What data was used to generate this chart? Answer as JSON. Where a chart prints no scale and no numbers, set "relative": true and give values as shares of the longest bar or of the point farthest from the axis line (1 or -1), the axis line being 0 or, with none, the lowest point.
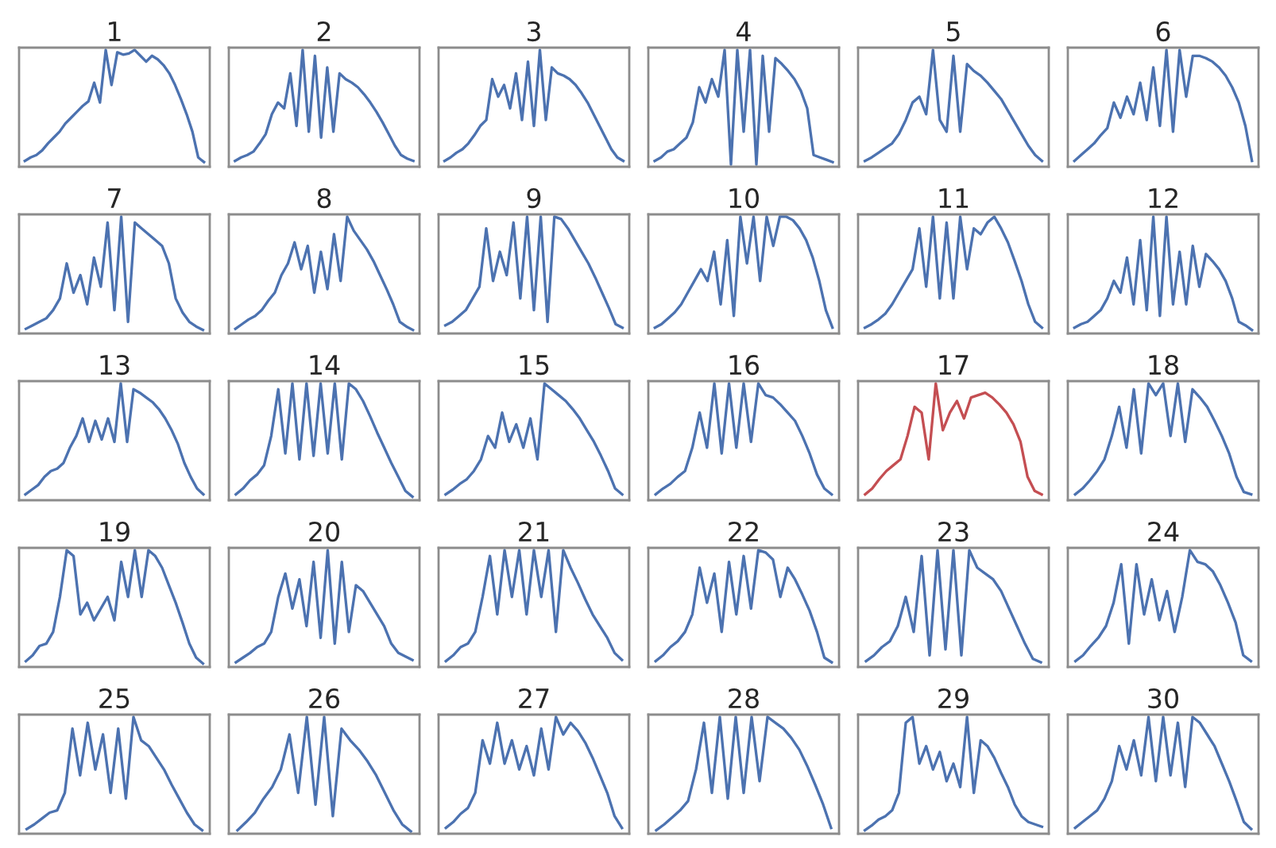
{
  "chart_data": [
    {
      "type": "line",
      "relative": true,
      "title": "1",
      "color": "#4c72b0",
      "values": [
        0.05,
        0.08,
        0.1,
        0.14,
        0.2,
        0.25,
        0.3,
        0.37,
        0.42,
        0.47,
        0.52,
        0.56,
        0.72,
        0.55,
        1.0,
        0.7,
        0.98,
        0.96,
        0.97,
        1.0,
        0.95,
        0.9,
        0.95,
        0.92,
        0.87,
        0.8,
        0.7,
        0.58,
        0.45,
        0.3,
        0.08,
        0.04
      ]
    },
    {
      "type": "line",
      "relative": true,
      "title": "2",
      "color": "#4c72b0",
      "values": [
        0.05,
        0.08,
        0.1,
        0.13,
        0.2,
        0.28,
        0.45,
        0.55,
        0.5,
        0.8,
        0.35,
        1.0,
        0.3,
        0.95,
        0.25,
        0.85,
        0.3,
        0.8,
        0.75,
        0.72,
        0.68,
        0.62,
        0.55,
        0.47,
        0.38,
        0.28,
        0.18,
        0.1,
        0.07,
        0.05
      ]
    },
    {
      "type": "line",
      "relative": true,
      "title": "3",
      "color": "#4c72b0",
      "values": [
        0.05,
        0.08,
        0.12,
        0.15,
        0.2,
        0.27,
        0.35,
        0.4,
        0.75,
        0.6,
        0.7,
        0.5,
        0.8,
        0.4,
        0.9,
        0.35,
        1.0,
        0.4,
        0.85,
        0.8,
        0.78,
        0.75,
        0.7,
        0.63,
        0.55,
        0.45,
        0.35,
        0.25,
        0.15,
        0.08,
        0.05
      ]
    },
    {
      "type": "line",
      "relative": true,
      "title": "4",
      "color": "#4c72b0",
      "values": [
        0.05,
        0.08,
        0.13,
        0.15,
        0.2,
        0.25,
        0.38,
        0.68,
        0.55,
        0.75,
        0.6,
        1.0,
        0.02,
        1.0,
        0.3,
        1.0,
        0.02,
        0.95,
        0.3,
        0.93,
        0.88,
        0.82,
        0.75,
        0.65,
        0.5,
        0.1,
        0.08,
        0.06,
        0.04
      ]
    },
    {
      "type": "line",
      "relative": true,
      "title": "5",
      "color": "#4c72b0",
      "values": [
        0.05,
        0.08,
        0.12,
        0.16,
        0.2,
        0.28,
        0.4,
        0.55,
        0.6,
        0.45,
        1.0,
        0.4,
        0.3,
        0.95,
        0.3,
        0.88,
        0.82,
        0.78,
        0.72,
        0.65,
        0.58,
        0.48,
        0.38,
        0.28,
        0.18,
        0.1,
        0.05
      ]
    },
    {
      "type": "line",
      "relative": true,
      "title": "6",
      "color": "#4c72b0",
      "values": [
        0.05,
        0.1,
        0.15,
        0.2,
        0.27,
        0.33,
        0.55,
        0.42,
        0.6,
        0.45,
        0.72,
        0.4,
        0.85,
        0.35,
        1.0,
        0.3,
        1.0,
        0.6,
        0.95,
        0.95,
        0.93,
        0.9,
        0.85,
        0.78,
        0.68,
        0.55,
        0.35,
        0.05
      ]
    },
    {
      "type": "line",
      "relative": true,
      "title": "7",
      "color": "#4c72b0",
      "values": [
        0.04,
        0.07,
        0.1,
        0.13,
        0.2,
        0.3,
        0.6,
        0.35,
        0.5,
        0.25,
        0.65,
        0.4,
        0.95,
        0.2,
        1.0,
        0.1,
        0.95,
        0.9,
        0.85,
        0.8,
        0.75,
        0.6,
        0.3,
        0.18,
        0.1,
        0.06,
        0.03
      ]
    },
    {
      "type": "line",
      "relative": true,
      "title": "8",
      "color": "#4c72b0",
      "values": [
        0.04,
        0.08,
        0.12,
        0.15,
        0.2,
        0.28,
        0.35,
        0.5,
        0.6,
        0.78,
        0.55,
        0.75,
        0.35,
        0.7,
        0.38,
        0.85,
        0.45,
        1.0,
        0.88,
        0.8,
        0.72,
        0.62,
        0.5,
        0.38,
        0.25,
        0.1,
        0.06,
        0.03
      ]
    },
    {
      "type": "line",
      "relative": true,
      "title": "9",
      "color": "#4c72b0",
      "values": [
        0.07,
        0.1,
        0.15,
        0.2,
        0.3,
        0.4,
        0.9,
        0.45,
        0.7,
        0.5,
        0.95,
        0.3,
        1.0,
        0.2,
        1.0,
        0.1,
        1.0,
        0.98,
        0.9,
        0.8,
        0.7,
        0.6,
        0.48,
        0.35,
        0.22,
        0.08,
        0.05
      ]
    },
    {
      "type": "line",
      "relative": true,
      "title": "10",
      "color": "#4c72b0",
      "values": [
        0.05,
        0.08,
        0.13,
        0.18,
        0.25,
        0.35,
        0.45,
        0.55,
        0.45,
        0.7,
        0.25,
        0.8,
        0.15,
        1.0,
        0.6,
        1.0,
        0.45,
        1.0,
        0.75,
        1.0,
        1.0,
        0.97,
        0.9,
        0.8,
        0.65,
        0.45,
        0.2,
        0.05
      ]
    },
    {
      "type": "line",
      "relative": true,
      "title": "11",
      "color": "#4c72b0",
      "values": [
        0.05,
        0.08,
        0.12,
        0.17,
        0.25,
        0.35,
        0.45,
        0.55,
        0.9,
        0.4,
        1.0,
        0.3,
        0.95,
        0.3,
        1.0,
        0.55,
        0.9,
        0.85,
        0.95,
        1.0,
        0.9,
        0.78,
        0.62,
        0.45,
        0.25,
        0.1,
        0.05
      ]
    },
    {
      "type": "line",
      "relative": true,
      "title": "12",
      "color": "#4c72b0",
      "values": [
        0.05,
        0.08,
        0.1,
        0.15,
        0.2,
        0.3,
        0.45,
        0.35,
        0.65,
        0.25,
        0.8,
        0.2,
        1.0,
        0.15,
        1.0,
        0.25,
        0.7,
        0.25,
        0.75,
        0.4,
        0.68,
        0.62,
        0.55,
        0.45,
        0.3,
        0.1,
        0.07,
        0.03
      ]
    },
    {
      "type": "line",
      "relative": true,
      "title": "13",
      "color": "#4c72b0",
      "values": [
        0.05,
        0.09,
        0.13,
        0.2,
        0.25,
        0.27,
        0.32,
        0.45,
        0.55,
        0.7,
        0.5,
        0.68,
        0.52,
        0.7,
        0.5,
        1.0,
        0.5,
        0.95,
        0.92,
        0.88,
        0.84,
        0.78,
        0.7,
        0.6,
        0.48,
        0.32,
        0.2,
        0.1,
        0.05
      ]
    },
    {
      "type": "line",
      "relative": true,
      "title": "14",
      "color": "#4c72b0",
      "values": [
        0.05,
        0.1,
        0.17,
        0.22,
        0.3,
        0.55,
        0.95,
        0.4,
        1.0,
        0.35,
        1.0,
        0.38,
        1.0,
        0.4,
        1.0,
        0.35,
        1.0,
        0.95,
        0.85,
        0.72,
        0.58,
        0.45,
        0.32,
        0.2,
        0.08,
        0.03
      ]
    },
    {
      "type": "line",
      "relative": true,
      "title": "15",
      "color": "#4c72b0",
      "values": [
        0.05,
        0.09,
        0.14,
        0.18,
        0.25,
        0.35,
        0.55,
        0.45,
        0.75,
        0.5,
        0.65,
        0.45,
        0.7,
        0.35,
        1.0,
        0.95,
        0.9,
        0.85,
        0.78,
        0.7,
        0.6,
        0.5,
        0.38,
        0.25,
        0.1,
        0.05
      ]
    },
    {
      "type": "line",
      "relative": true,
      "title": "16",
      "color": "#4c72b0",
      "values": [
        0.05,
        0.1,
        0.14,
        0.2,
        0.25,
        0.45,
        0.75,
        0.45,
        1.0,
        0.4,
        1.0,
        0.45,
        1.0,
        0.5,
        1.0,
        0.9,
        0.88,
        0.82,
        0.75,
        0.68,
        0.55,
        0.4,
        0.22,
        0.1,
        0.05
      ]
    },
    {
      "type": "line",
      "relative": true,
      "title": "17",
      "color": "#c44e52",
      "values": [
        0.05,
        0.1,
        0.18,
        0.25,
        0.3,
        0.35,
        0.55,
        0.8,
        0.75,
        0.35,
        1.0,
        0.6,
        0.75,
        0.85,
        0.7,
        0.88,
        0.9,
        0.92,
        0.88,
        0.82,
        0.75,
        0.65,
        0.5,
        0.2,
        0.08,
        0.05
      ]
    },
    {
      "type": "line",
      "relative": true,
      "title": "18",
      "color": "#4c72b0",
      "values": [
        0.05,
        0.1,
        0.17,
        0.25,
        0.35,
        0.55,
        0.8,
        0.45,
        0.95,
        0.4,
        1.0,
        0.9,
        1.0,
        0.55,
        1.0,
        0.5,
        0.95,
        0.88,
        0.8,
        0.68,
        0.55,
        0.4,
        0.2,
        0.07,
        0.05
      ]
    },
    {
      "type": "line",
      "relative": true,
      "title": "19",
      "color": "#4c72b0",
      "values": [
        0.05,
        0.1,
        0.18,
        0.2,
        0.3,
        0.6,
        1.0,
        0.95,
        0.45,
        0.55,
        0.4,
        0.5,
        0.6,
        0.4,
        0.9,
        0.6,
        1.0,
        0.6,
        1.0,
        0.95,
        0.85,
        0.7,
        0.55,
        0.38,
        0.2,
        0.08,
        0.03
      ]
    },
    {
      "type": "line",
      "relative": true,
      "title": "20",
      "color": "#4c72b0",
      "values": [
        0.04,
        0.08,
        0.12,
        0.17,
        0.2,
        0.3,
        0.6,
        0.8,
        0.5,
        0.75,
        0.35,
        0.9,
        0.25,
        1.0,
        0.2,
        0.9,
        0.3,
        0.7,
        0.65,
        0.55,
        0.45,
        0.35,
        0.2,
        0.12,
        0.09,
        0.06
      ]
    },
    {
      "type": "line",
      "relative": true,
      "title": "21",
      "color": "#4c72b0",
      "values": [
        0.05,
        0.1,
        0.17,
        0.2,
        0.3,
        0.6,
        0.95,
        0.45,
        1.0,
        0.6,
        1.0,
        0.45,
        1.0,
        0.6,
        1.0,
        0.3,
        1.0,
        0.85,
        0.72,
        0.58,
        0.45,
        0.35,
        0.25,
        0.12,
        0.06
      ]
    },
    {
      "type": "line",
      "relative": true,
      "title": "22",
      "color": "#4c72b0",
      "values": [
        0.05,
        0.1,
        0.17,
        0.22,
        0.3,
        0.45,
        0.85,
        0.55,
        0.8,
        0.3,
        0.9,
        0.45,
        0.95,
        0.5,
        1.0,
        0.98,
        0.92,
        0.6,
        0.85,
        0.75,
        0.62,
        0.48,
        0.3,
        0.08,
        0.04
      ]
    },
    {
      "type": "line",
      "relative": true,
      "title": "23",
      "color": "#4c72b0",
      "values": [
        0.05,
        0.1,
        0.17,
        0.22,
        0.35,
        0.6,
        0.3,
        0.95,
        0.1,
        1.0,
        0.15,
        1.0,
        0.1,
        1.0,
        0.85,
        0.8,
        0.75,
        0.65,
        0.5,
        0.35,
        0.2,
        0.07,
        0.04
      ]
    },
    {
      "type": "line",
      "relative": true,
      "title": "24",
      "color": "#4c72b0",
      "values": [
        0.05,
        0.1,
        0.18,
        0.25,
        0.35,
        0.55,
        0.88,
        0.2,
        0.88,
        0.45,
        0.75,
        0.4,
        0.65,
        0.3,
        0.6,
        1.0,
        0.9,
        0.88,
        0.82,
        0.7,
        0.55,
        0.38,
        0.1,
        0.05
      ]
    },
    {
      "type": "line",
      "relative": true,
      "title": "25",
      "color": "#4c72b0",
      "values": [
        0.04,
        0.08,
        0.13,
        0.18,
        0.2,
        0.35,
        0.9,
        0.5,
        0.95,
        0.55,
        0.85,
        0.35,
        0.9,
        0.3,
        1.0,
        0.8,
        0.75,
        0.65,
        0.55,
        0.42,
        0.3,
        0.18,
        0.08,
        0.03
      ]
    },
    {
      "type": "line",
      "relative": true,
      "title": "26",
      "color": "#4c72b0",
      "values": [
        0.03,
        0.1,
        0.18,
        0.3,
        0.4,
        0.55,
        0.85,
        0.35,
        1.0,
        0.25,
        1.0,
        0.15,
        0.9,
        0.8,
        0.72,
        0.62,
        0.5,
        0.35,
        0.2,
        0.08,
        0.02
      ]
    },
    {
      "type": "line",
      "relative": true,
      "title": "27",
      "color": "#4c72b0",
      "values": [
        0.05,
        0.1,
        0.17,
        0.22,
        0.35,
        0.8,
        0.6,
        0.95,
        0.6,
        0.8,
        0.55,
        0.75,
        0.5,
        0.9,
        0.55,
        1.0,
        0.85,
        0.95,
        0.88,
        0.78,
        0.65,
        0.5,
        0.35,
        0.15,
        0.05
      ]
    },
    {
      "type": "line",
      "relative": true,
      "title": "28",
      "color": "#4c72b0",
      "values": [
        0.03,
        0.08,
        0.14,
        0.2,
        0.28,
        0.55,
        0.95,
        0.35,
        1.0,
        0.3,
        1.0,
        0.35,
        1.0,
        0.45,
        1.0,
        0.95,
        0.9,
        0.82,
        0.72,
        0.58,
        0.42,
        0.25,
        0.05
      ]
    },
    {
      "type": "line",
      "relative": true,
      "title": "29",
      "color": "#4c72b0",
      "values": [
        0.03,
        0.07,
        0.12,
        0.15,
        0.2,
        0.35,
        0.95,
        1.0,
        0.6,
        0.75,
        0.55,
        0.7,
        0.45,
        0.6,
        0.4,
        1.0,
        0.35,
        0.8,
        0.75,
        0.65,
        0.52,
        0.4,
        0.25,
        0.15,
        0.1,
        0.08,
        0.06
      ]
    },
    {
      "type": "line",
      "relative": true,
      "title": "30",
      "color": "#4c72b0",
      "values": [
        0.05,
        0.1,
        0.15,
        0.2,
        0.3,
        0.45,
        0.75,
        0.55,
        0.8,
        0.5,
        1.0,
        0.45,
        1.0,
        0.5,
        0.95,
        0.4,
        1.0,
        0.95,
        0.85,
        0.75,
        0.6,
        0.45,
        0.28,
        0.1,
        0.04
      ]
    }
  ]
}
